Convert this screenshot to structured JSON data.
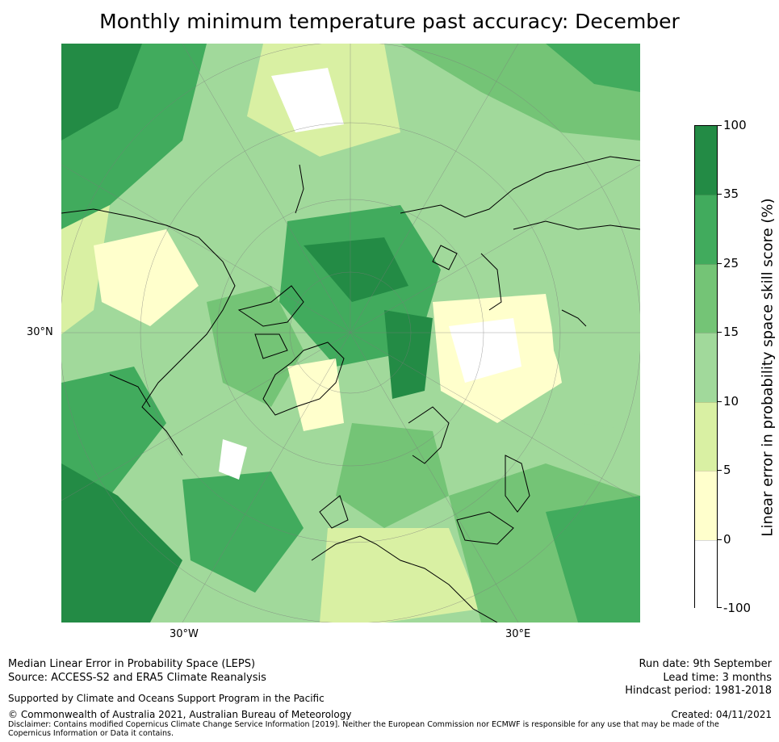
{
  "title": "Monthly minimum temperature past accuracy: December",
  "map": {
    "lat_label": "30°N",
    "lon_labels": [
      "30°W",
      "30°E"
    ],
    "projection": "polar stereographic (north)",
    "coastline_color": "#000000"
  },
  "colorbar": {
    "title": "Linear error in probability space skill score (%)",
    "tick_labels": [
      "100",
      "35",
      "25",
      "15",
      "10",
      "5",
      "0",
      "-100"
    ],
    "bins": [
      {
        "range": "35–100",
        "color": "#238b45"
      },
      {
        "range": "25–35",
        "color": "#41ab5d"
      },
      {
        "range": "15–25",
        "color": "#74c476"
      },
      {
        "range": "10–15",
        "color": "#a1d99b"
      },
      {
        "range": "5–10",
        "color": "#d9f0a3"
      },
      {
        "range": "0–5",
        "color": "#ffffcc"
      },
      {
        "range": "-100–0",
        "color": "#ffffff"
      }
    ]
  },
  "footer": {
    "left": {
      "line1": "Median Linear Error in Probability Space (LEPS)",
      "line2": "Source: ACCESS-S2 and ERA5 Climate Reanalysis",
      "support": "Supported by Climate and Oceans Support Program in the Pacific",
      "copyright": "© Commonwealth of Australia 2021, Australian Bureau of Meteorology",
      "disclaimer": "Disclaimer: Contains modified Copernicus Climate Change Service Information [2019]. Neither the European Commission nor ECMWF is responsible for any use that may be made of the Copernicus Information or Data it contains."
    },
    "right": {
      "run_date": "Run date: 9th September",
      "lead_time": "Lead time: 3 months",
      "hindcast": "Hindcast period: 1981-2018",
      "created": "Created: 04/11/2021"
    }
  }
}
